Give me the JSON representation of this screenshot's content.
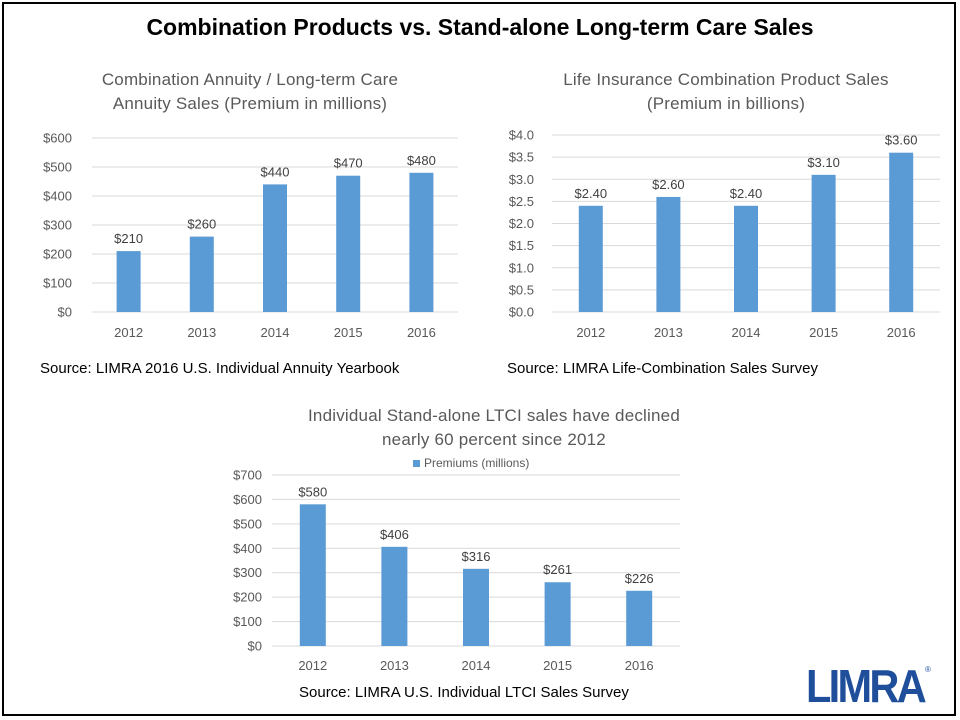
{
  "page": {
    "title": "Combination Products vs. Stand-alone Long-term Care Sales",
    "logo_text": "LIMRA"
  },
  "colors": {
    "bar": "#5b9bd5",
    "grid": "#d9d9d9",
    "axis_text": "#595959",
    "logo": "#1f4e9a"
  },
  "chart_data": [
    {
      "type": "bar",
      "title_lines": [
        "Combination Annuity / Long-term Care",
        "Annuity Sales (Premium in millions)"
      ],
      "categories": [
        "2012",
        "2013",
        "2014",
        "2015",
        "2016"
      ],
      "values": [
        210,
        260,
        440,
        470,
        480
      ],
      "value_labels": [
        "$210",
        "$260",
        "$440",
        "$470",
        "$480"
      ],
      "y_ticks": [
        "$0",
        "$100",
        "$200",
        "$300",
        "$400",
        "$500",
        "$600"
      ],
      "ylim": [
        0,
        600
      ],
      "grid": true,
      "source": "Source: LIMRA 2016 U.S. Individual Annuity Yearbook"
    },
    {
      "type": "bar",
      "title_lines": [
        "Life Insurance Combination Product Sales",
        "(Premium in billions)"
      ],
      "categories": [
        "2012",
        "2013",
        "2014",
        "2015",
        "2016"
      ],
      "values": [
        2.4,
        2.6,
        2.4,
        3.1,
        3.6
      ],
      "value_labels": [
        "$2.40",
        "$2.60",
        "$2.40",
        "$3.10",
        "$3.60"
      ],
      "y_ticks": [
        "$0.0",
        "$0.5",
        "$1.0",
        "$1.5",
        "$2.0",
        "$2.5",
        "$3.0",
        "$3.5",
        "$4.0"
      ],
      "ylim": [
        0,
        4
      ],
      "grid": true,
      "source": "Source: LIMRA Life-Combination Sales Survey"
    },
    {
      "type": "bar",
      "title_lines": [
        "Individual Stand-alone LTCI sales have declined",
        "nearly 60 percent since 2012"
      ],
      "legend": "Premiums (millions)",
      "legend_position": "top",
      "categories": [
        "2012",
        "2013",
        "2014",
        "2015",
        "2016"
      ],
      "values": [
        580,
        406,
        316,
        261,
        226
      ],
      "value_labels": [
        "$580",
        "$406",
        "$316",
        "$261",
        "$226"
      ],
      "y_ticks": [
        "$0",
        "$100",
        "$200",
        "$300",
        "$400",
        "$500",
        "$600",
        "$700"
      ],
      "ylim": [
        0,
        700
      ],
      "grid": true,
      "source": "Source: LIMRA U.S. Individual LTCI Sales Survey"
    }
  ]
}
